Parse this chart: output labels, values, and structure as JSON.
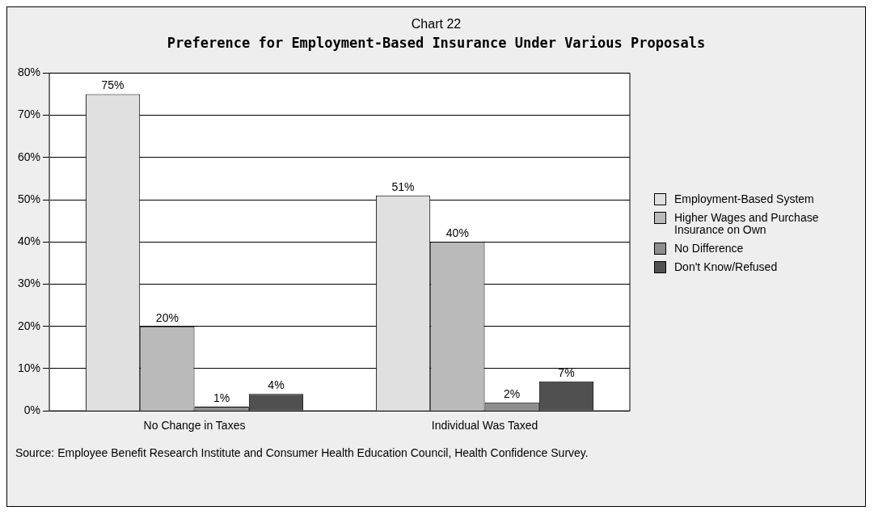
{
  "chart_data": {
    "type": "bar",
    "title": "Chart 22",
    "subtitle": "Preference for Employment-Based Insurance Under Various Proposals",
    "categories": [
      "No Change in Taxes",
      "Individual Was Taxed"
    ],
    "series": [
      {
        "name": "Employment-Based System",
        "color": "#e0e0e0",
        "values": [
          75,
          51
        ],
        "value_labels": [
          "75%",
          "51%"
        ]
      },
      {
        "name": "Higher Wages and Purchase Insurance on Own",
        "color": "#bababa",
        "values": [
          20,
          40
        ],
        "value_labels": [
          "20%",
          "40%"
        ]
      },
      {
        "name": "No Difference",
        "color": "#8e8e8e",
        "values": [
          1,
          2
        ],
        "value_labels": [
          "1%",
          "2%"
        ]
      },
      {
        "name": "Don't Know/Refused",
        "color": "#505050",
        "values": [
          4,
          7
        ],
        "value_labels": [
          "4%",
          "7%"
        ]
      }
    ],
    "ylim": [
      0,
      80
    ],
    "yticks": [
      {
        "value": 0,
        "label": "0%"
      },
      {
        "value": 10,
        "label": "10%"
      },
      {
        "value": 20,
        "label": "20%"
      },
      {
        "value": 30,
        "label": "30%"
      },
      {
        "value": 40,
        "label": "40%"
      },
      {
        "value": 50,
        "label": "50%"
      },
      {
        "value": 60,
        "label": "60%"
      },
      {
        "value": 70,
        "label": "70%"
      },
      {
        "value": 80,
        "label": "80%"
      }
    ],
    "grid": "y",
    "legend": "right",
    "annotations": [
      "Source: Employee Benefit Research Institute and Consumer Health Education Council, Health Confidence Survey."
    ]
  }
}
